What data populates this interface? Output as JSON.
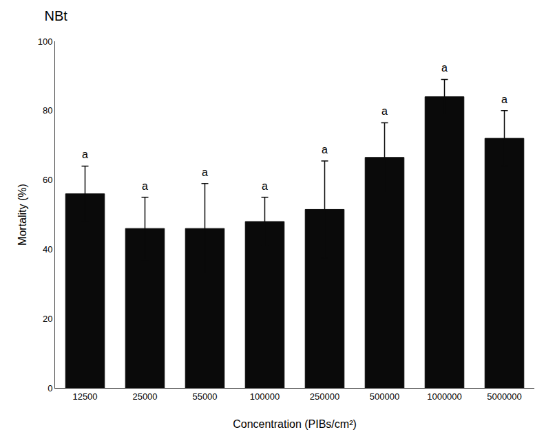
{
  "chart_data": {
    "type": "bar",
    "title": "NBt",
    "xlabel": "Concentration (PIBs/cm²)",
    "ylabel": "Mortality (%)",
    "categories": [
      "12500",
      "25000",
      "55000",
      "100000",
      "250000",
      "500000",
      "1000000",
      "5000000"
    ],
    "values": [
      56.0,
      46.0,
      46.0,
      48.0,
      51.5,
      66.5,
      84.0,
      72.0
    ],
    "errors": [
      8.0,
      9.0,
      13.0,
      7.0,
      14.0,
      10.0,
      5.0,
      8.0
    ],
    "annotations": [
      "a",
      "a",
      "a",
      "a",
      "a",
      "a",
      "a",
      "a"
    ],
    "color": "#0a0a0a",
    "ylim": [
      0,
      100
    ],
    "yticks": [
      0,
      20,
      40,
      60,
      80,
      100
    ],
    "grid": false
  }
}
